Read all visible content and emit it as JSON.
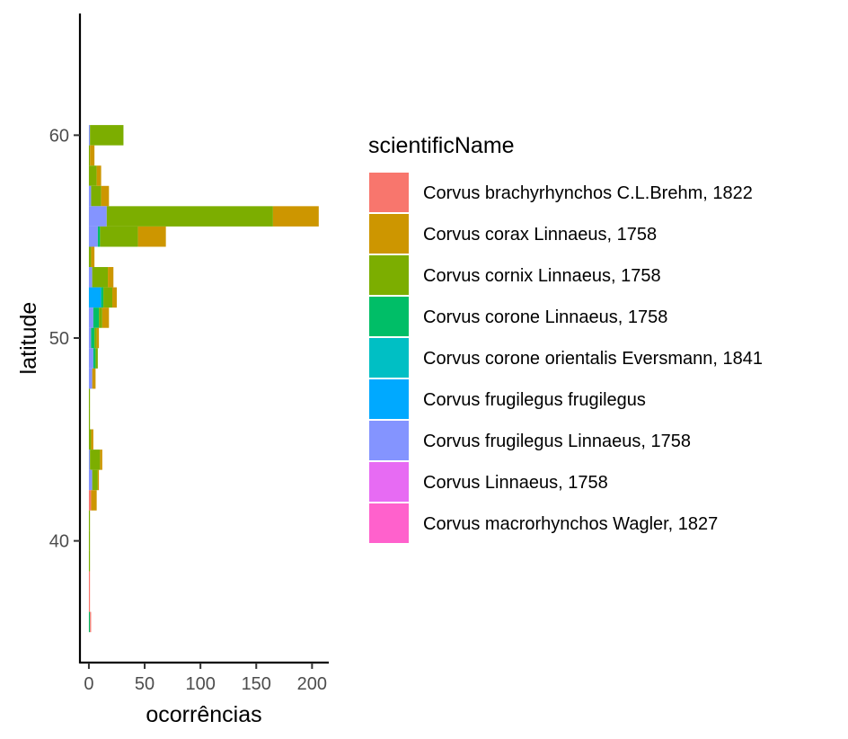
{
  "chart_data": {
    "type": "bar",
    "orientation": "horizontal",
    "stacked": true,
    "title": "",
    "xlabel": "ocorrências",
    "ylabel": "latitude",
    "xlim": [
      -8,
      215
    ],
    "ylim": [
      34,
      66
    ],
    "x_ticks": [
      0,
      50,
      100,
      150,
      200
    ],
    "y_ticks": [
      40,
      50,
      60
    ],
    "bin_width": 1,
    "grid": false,
    "legend": {
      "title": "scientificName",
      "position": "right",
      "entries": [
        {
          "name": "Corvus brachyrhynchos C.L.Brehm, 1822",
          "color": "#F8766D"
        },
        {
          "name": "Corvus corax Linnaeus, 1758",
          "color": "#CD9600"
        },
        {
          "name": "Corvus cornix Linnaeus, 1758",
          "color": "#7CAE00"
        },
        {
          "name": "Corvus corone Linnaeus, 1758",
          "color": "#00BE67"
        },
        {
          "name": "Corvus corone orientalis Eversmann, 1841",
          "color": "#00BFC4"
        },
        {
          "name": "Corvus frugilegus frugilegus",
          "color": "#00A9FF"
        },
        {
          "name": "Corvus frugilegus Linnaeus, 1758",
          "color": "#8494FF"
        },
        {
          "name": "Corvus Linnaeus, 1758",
          "color": "#E76BF3"
        },
        {
          "name": "Corvus macrorhynchos Wagler, 1827",
          "color": "#FF61CC"
        }
      ]
    },
    "bars": [
      {
        "y": 60,
        "segments": [
          [
            "Corvus frugilegus Linnaeus, 1758",
            1
          ],
          [
            "Corvus cornix Linnaeus, 1758",
            30
          ]
        ]
      },
      {
        "y": 59,
        "segments": [
          [
            "Corvus cornix Linnaeus, 1758",
            1
          ],
          [
            "Corvus corax Linnaeus, 1758",
            4
          ]
        ]
      },
      {
        "y": 58,
        "segments": [
          [
            "Corvus cornix Linnaeus, 1758",
            7
          ],
          [
            "Corvus corax Linnaeus, 1758",
            4
          ]
        ]
      },
      {
        "y": 57,
        "segments": [
          [
            "Corvus frugilegus Linnaeus, 1758",
            2
          ],
          [
            "Corvus cornix Linnaeus, 1758",
            9
          ],
          [
            "Corvus corax Linnaeus, 1758",
            7
          ]
        ]
      },
      {
        "y": 56,
        "segments": [
          [
            "Corvus frugilegus Linnaeus, 1758",
            16
          ],
          [
            "Corvus cornix Linnaeus, 1758",
            149
          ],
          [
            "Corvus corax Linnaeus, 1758",
            41
          ]
        ]
      },
      {
        "y": 55,
        "segments": [
          [
            "Corvus frugilegus Linnaeus, 1758",
            8
          ],
          [
            "Corvus corone Linnaeus, 1758",
            2
          ],
          [
            "Corvus cornix Linnaeus, 1758",
            34
          ],
          [
            "Corvus corax Linnaeus, 1758",
            25
          ]
        ]
      },
      {
        "y": 54,
        "segments": [
          [
            "Corvus cornix Linnaeus, 1758",
            2
          ],
          [
            "Corvus corax Linnaeus, 1758",
            3
          ]
        ]
      },
      {
        "y": 53,
        "segments": [
          [
            "Corvus frugilegus Linnaeus, 1758",
            3
          ],
          [
            "Corvus cornix Linnaeus, 1758",
            14
          ],
          [
            "Corvus corax Linnaeus, 1758",
            5
          ]
        ]
      },
      {
        "y": 52,
        "segments": [
          [
            "Corvus frugilegus frugilegus",
            11
          ],
          [
            "Corvus corone Linnaeus, 1758",
            2
          ],
          [
            "Corvus cornix Linnaeus, 1758",
            8
          ],
          [
            "Corvus corax Linnaeus, 1758",
            4
          ]
        ]
      },
      {
        "y": 51,
        "segments": [
          [
            "Corvus frugilegus Linnaeus, 1758",
            4
          ],
          [
            "Corvus corone Linnaeus, 1758",
            5
          ],
          [
            "Corvus cornix Linnaeus, 1758",
            3
          ],
          [
            "Corvus corax Linnaeus, 1758",
            6
          ]
        ]
      },
      {
        "y": 50,
        "segments": [
          [
            "Corvus frugilegus Linnaeus, 1758",
            2
          ],
          [
            "Corvus corone Linnaeus, 1758",
            3
          ],
          [
            "Corvus cornix Linnaeus, 1758",
            2
          ],
          [
            "Corvus corax Linnaeus, 1758",
            2
          ]
        ]
      },
      {
        "y": 49,
        "segments": [
          [
            "Corvus frugilegus Linnaeus, 1758",
            4
          ],
          [
            "Corvus corone Linnaeus, 1758",
            2
          ],
          [
            "Corvus cornix Linnaeus, 1758",
            2
          ]
        ]
      },
      {
        "y": 48,
        "segments": [
          [
            "Corvus frugilegus Linnaeus, 1758",
            3
          ],
          [
            "Corvus corax Linnaeus, 1758",
            3
          ]
        ]
      },
      {
        "y": 47,
        "segments": [
          [
            "Corvus cornix Linnaeus, 1758",
            1
          ]
        ]
      },
      {
        "y": 46,
        "segments": [
          [
            "Corvus cornix Linnaeus, 1758",
            1
          ]
        ]
      },
      {
        "y": 45,
        "segments": [
          [
            "Corvus cornix Linnaeus, 1758",
            2
          ],
          [
            "Corvus corax Linnaeus, 1758",
            2
          ]
        ]
      },
      {
        "y": 44,
        "segments": [
          [
            "Corvus frugilegus Linnaeus, 1758",
            1
          ],
          [
            "Corvus cornix Linnaeus, 1758",
            9
          ],
          [
            "Corvus corax Linnaeus, 1758",
            2
          ]
        ]
      },
      {
        "y": 43,
        "segments": [
          [
            "Corvus frugilegus Linnaeus, 1758",
            3
          ],
          [
            "Corvus cornix Linnaeus, 1758",
            5
          ],
          [
            "Corvus corax Linnaeus, 1758",
            1
          ]
        ]
      },
      {
        "y": 42,
        "segments": [
          [
            "Corvus brachyrhynchos C.L.Brehm, 1822",
            2
          ],
          [
            "Corvus corax Linnaeus, 1758",
            5
          ]
        ]
      },
      {
        "y": 41,
        "segments": [
          [
            "Corvus cornix Linnaeus, 1758",
            1
          ]
        ]
      },
      {
        "y": 40,
        "segments": [
          [
            "Corvus cornix Linnaeus, 1758",
            1
          ]
        ]
      },
      {
        "y": 39,
        "segments": [
          [
            "Corvus cornix Linnaeus, 1758",
            1
          ]
        ]
      },
      {
        "y": 38,
        "segments": [
          [
            "Corvus brachyrhynchos C.L.Brehm, 1822",
            1
          ]
        ]
      },
      {
        "y": 37,
        "segments": [
          [
            "Corvus brachyrhynchos C.L.Brehm, 1822",
            1
          ]
        ]
      },
      {
        "y": 36,
        "segments": [
          [
            "Corvus corone Linnaeus, 1758",
            1
          ],
          [
            "Corvus brachyrhynchos C.L.Brehm, 1822",
            1
          ]
        ]
      }
    ]
  }
}
